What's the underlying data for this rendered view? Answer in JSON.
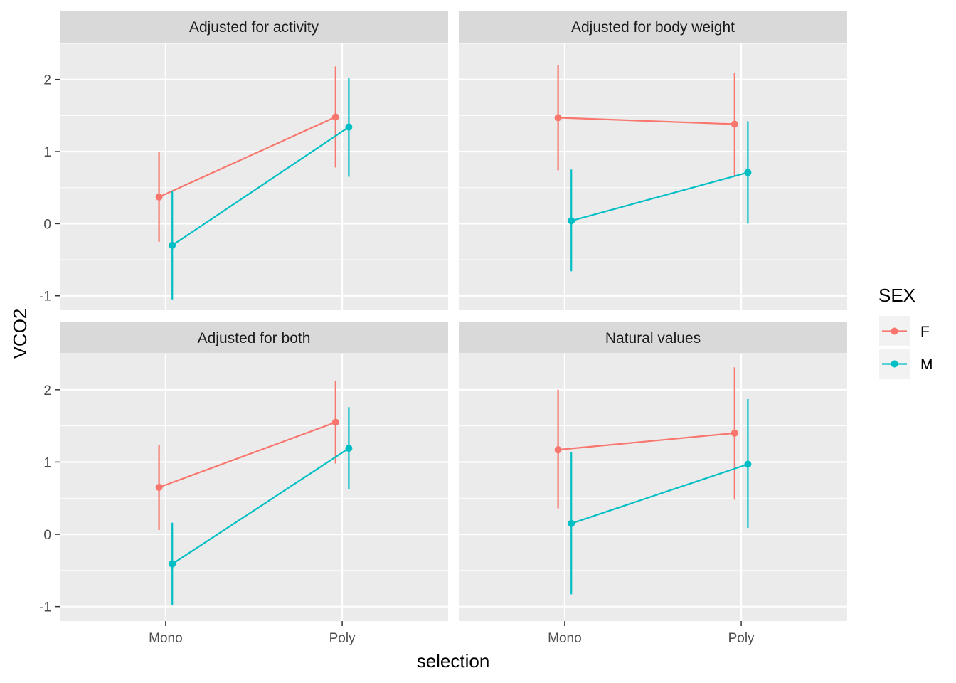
{
  "chart_data": {
    "type": "line",
    "facet_type": "wrap",
    "error_bars": true,
    "xlabel": "selection",
    "ylabel": "VCO2",
    "x_categories": [
      "Mono",
      "Poly"
    ],
    "y_ticks": [
      -1,
      0,
      1,
      2
    ],
    "ylim": [
      -1.2,
      2.5
    ],
    "grid": true,
    "legend": {
      "title": "SEX",
      "position": "right",
      "items": [
        {
          "name": "F",
          "color": "#F8766D"
        },
        {
          "name": "M",
          "color": "#00BFC4"
        }
      ]
    },
    "panels": [
      {
        "title": "Adjusted for activity",
        "series": [
          {
            "name": "F",
            "points": [
              {
                "x": "Mono",
                "y": 0.37,
                "ymin": -0.25,
                "ymax": 0.99
              },
              {
                "x": "Poly",
                "y": 1.48,
                "ymin": 0.78,
                "ymax": 2.18
              }
            ]
          },
          {
            "name": "M",
            "points": [
              {
                "x": "Mono",
                "y": -0.3,
                "ymin": -1.05,
                "ymax": 0.45
              },
              {
                "x": "Poly",
                "y": 1.34,
                "ymin": 0.65,
                "ymax": 2.02
              }
            ]
          }
        ]
      },
      {
        "title": "Adjusted for body weight",
        "series": [
          {
            "name": "F",
            "points": [
              {
                "x": "Mono",
                "y": 1.47,
                "ymin": 0.74,
                "ymax": 2.2
              },
              {
                "x": "Poly",
                "y": 1.38,
                "ymin": 0.67,
                "ymax": 2.09
              }
            ]
          },
          {
            "name": "M",
            "points": [
              {
                "x": "Mono",
                "y": 0.04,
                "ymin": -0.66,
                "ymax": 0.75
              },
              {
                "x": "Poly",
                "y": 0.71,
                "ymin": 0.0,
                "ymax": 1.42
              }
            ]
          }
        ]
      },
      {
        "title": "Adjusted for both",
        "series": [
          {
            "name": "F",
            "points": [
              {
                "x": "Mono",
                "y": 0.65,
                "ymin": 0.06,
                "ymax": 1.24
              },
              {
                "x": "Poly",
                "y": 1.55,
                "ymin": 0.98,
                "ymax": 2.12
              }
            ]
          },
          {
            "name": "M",
            "points": [
              {
                "x": "Mono",
                "y": -0.41,
                "ymin": -0.98,
                "ymax": 0.16
              },
              {
                "x": "Poly",
                "y": 1.19,
                "ymin": 0.62,
                "ymax": 1.76
              }
            ]
          }
        ]
      },
      {
        "title": "Natural values",
        "series": [
          {
            "name": "F",
            "points": [
              {
                "x": "Mono",
                "y": 1.17,
                "ymin": 0.36,
                "ymax": 2.0
              },
              {
                "x": "Poly",
                "y": 1.4,
                "ymin": 0.48,
                "ymax": 2.31
              }
            ]
          },
          {
            "name": "M",
            "points": [
              {
                "x": "Mono",
                "y": 0.15,
                "ymin": -0.83,
                "ymax": 1.14
              },
              {
                "x": "Poly",
                "y": 0.97,
                "ymin": 0.09,
                "ymax": 1.87
              }
            ]
          }
        ]
      }
    ]
  }
}
